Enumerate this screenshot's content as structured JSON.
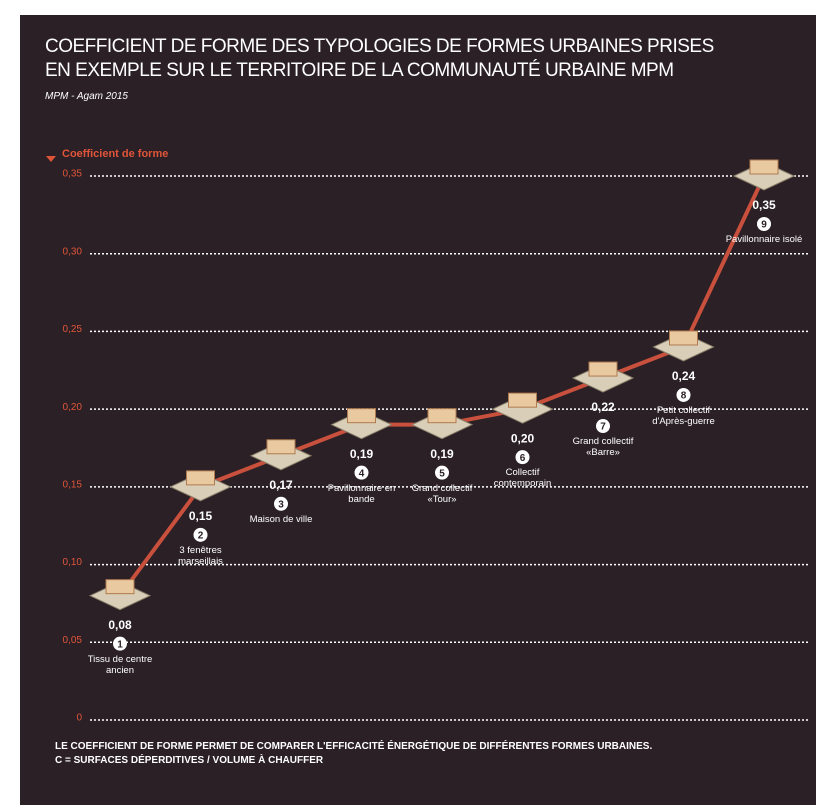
{
  "chart_data": {
    "type": "line",
    "title": "COEFFICIENT DE FORME DES TYPOLOGIES DE FORMES URBAINES PRISES EN EXEMPLE SUR LE TERRITOIRE DE LA COMMUNAUTÉ URBAINE MPM",
    "subtitle": "MPM - Agam 2015",
    "y_label": "Coefficient de forme",
    "categories": [
      "Tissu de centre ancien",
      "3 fenêtres marseillais",
      "Maison de ville",
      "Pavillonnaire en bande",
      "Grand collectif «Tour»",
      "Collectif contemporain",
      "Grand collectif «Barre»",
      "Petit collectif d'Après-guerre",
      "Pavillonnaire isolé"
    ],
    "category_numbers": [
      1,
      2,
      3,
      4,
      5,
      6,
      7,
      8,
      9
    ],
    "values": [
      0.08,
      0.15,
      0.17,
      0.19,
      0.19,
      0.2,
      0.22,
      0.24,
      0.35
    ],
    "value_labels": [
      "0,08",
      "0,15",
      "0,17",
      "0,19",
      "0,19",
      "0,20",
      "0,22",
      "0,24",
      "0,35"
    ],
    "color": "#c9503c",
    "ylim": [
      0,
      0.35
    ],
    "yticks": [
      0,
      {
        "value": 0.05,
        "label": "0,05"
      },
      {
        "value": 0.1,
        "label": "0,10"
      },
      {
        "value": 0.15,
        "label": "0,15"
      },
      {
        "value": 0.2,
        "label": "0,20"
      },
      {
        "value": 0.25,
        "label": "0,25"
      },
      {
        "value": 0.3,
        "label": "0,30"
      },
      {
        "value": 0.35,
        "label": "0,35"
      }
    ],
    "grid": true,
    "notes": [
      "LE COEFFICIENT DE FORME PERMET DE COMPARER L'EFFICACITÉ ÉNERGÉTIQUE DE DIFFÉRENTES FORMES URBAINES.",
      "C = SURFACES DÉPERDITIVES / VOLUME À CHAUFFER"
    ]
  }
}
